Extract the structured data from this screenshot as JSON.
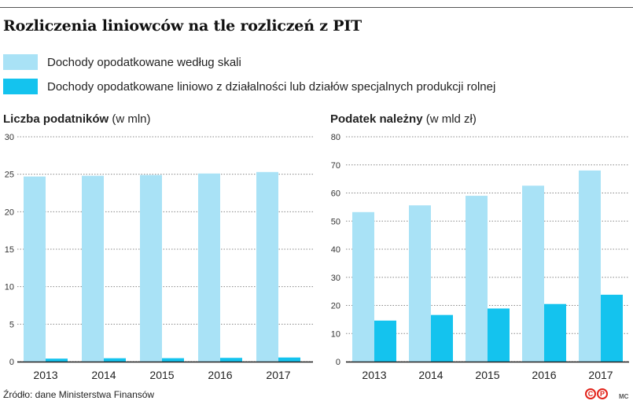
{
  "title": "Rozliczenia liniowców na tle rozliczeń z PIT",
  "legend": [
    {
      "label": "Dochody opodatkowane według skali",
      "color": "#a9e2f6"
    },
    {
      "label": "Dochody opodatkowane liniowo z działalności lub działów specjalnych produkcji rolnej",
      "color": "#14c3ee"
    }
  ],
  "chart_data": [
    {
      "type": "bar",
      "title": "Liczba podatników",
      "unit": "(w mln)",
      "categories": [
        "2013",
        "2014",
        "2015",
        "2016",
        "2017"
      ],
      "ylim": [
        0,
        30
      ],
      "yticks": [
        0,
        5,
        10,
        15,
        20,
        25,
        30
      ],
      "series": [
        {
          "name": "Dochody opodatkowane według skali",
          "values": [
            24.7,
            24.8,
            24.9,
            25.1,
            25.3
          ]
        },
        {
          "name": "Dochody opodatkowane liniowo z działalności lub działów specjalnych produkcji rolnej",
          "values": [
            0.4,
            0.45,
            0.46,
            0.5,
            0.55
          ]
        }
      ],
      "grid": true
    },
    {
      "type": "bar",
      "title": "Podatek należny",
      "unit": "(w mld zł)",
      "categories": [
        "2013",
        "2014",
        "2015",
        "2016",
        "2017"
      ],
      "ylim": [
        0,
        80
      ],
      "yticks": [
        0,
        10,
        20,
        30,
        40,
        50,
        60,
        70,
        80
      ],
      "series": [
        {
          "name": "Dochody opodatkowane według skali",
          "values": [
            53.2,
            55.6,
            59.0,
            62.6,
            68.0
          ]
        },
        {
          "name": "Dochody opodatkowane liniowo z działalności lub działów specjalnych produkcji rolnej",
          "values": [
            14.6,
            16.6,
            18.9,
            20.5,
            23.8
          ]
        }
      ],
      "grid": true
    }
  ],
  "footer": {
    "source": "Źródło: dane Ministerstwa Finansów",
    "logo_letters": [
      "C",
      "P"
    ],
    "credit": "MC"
  }
}
